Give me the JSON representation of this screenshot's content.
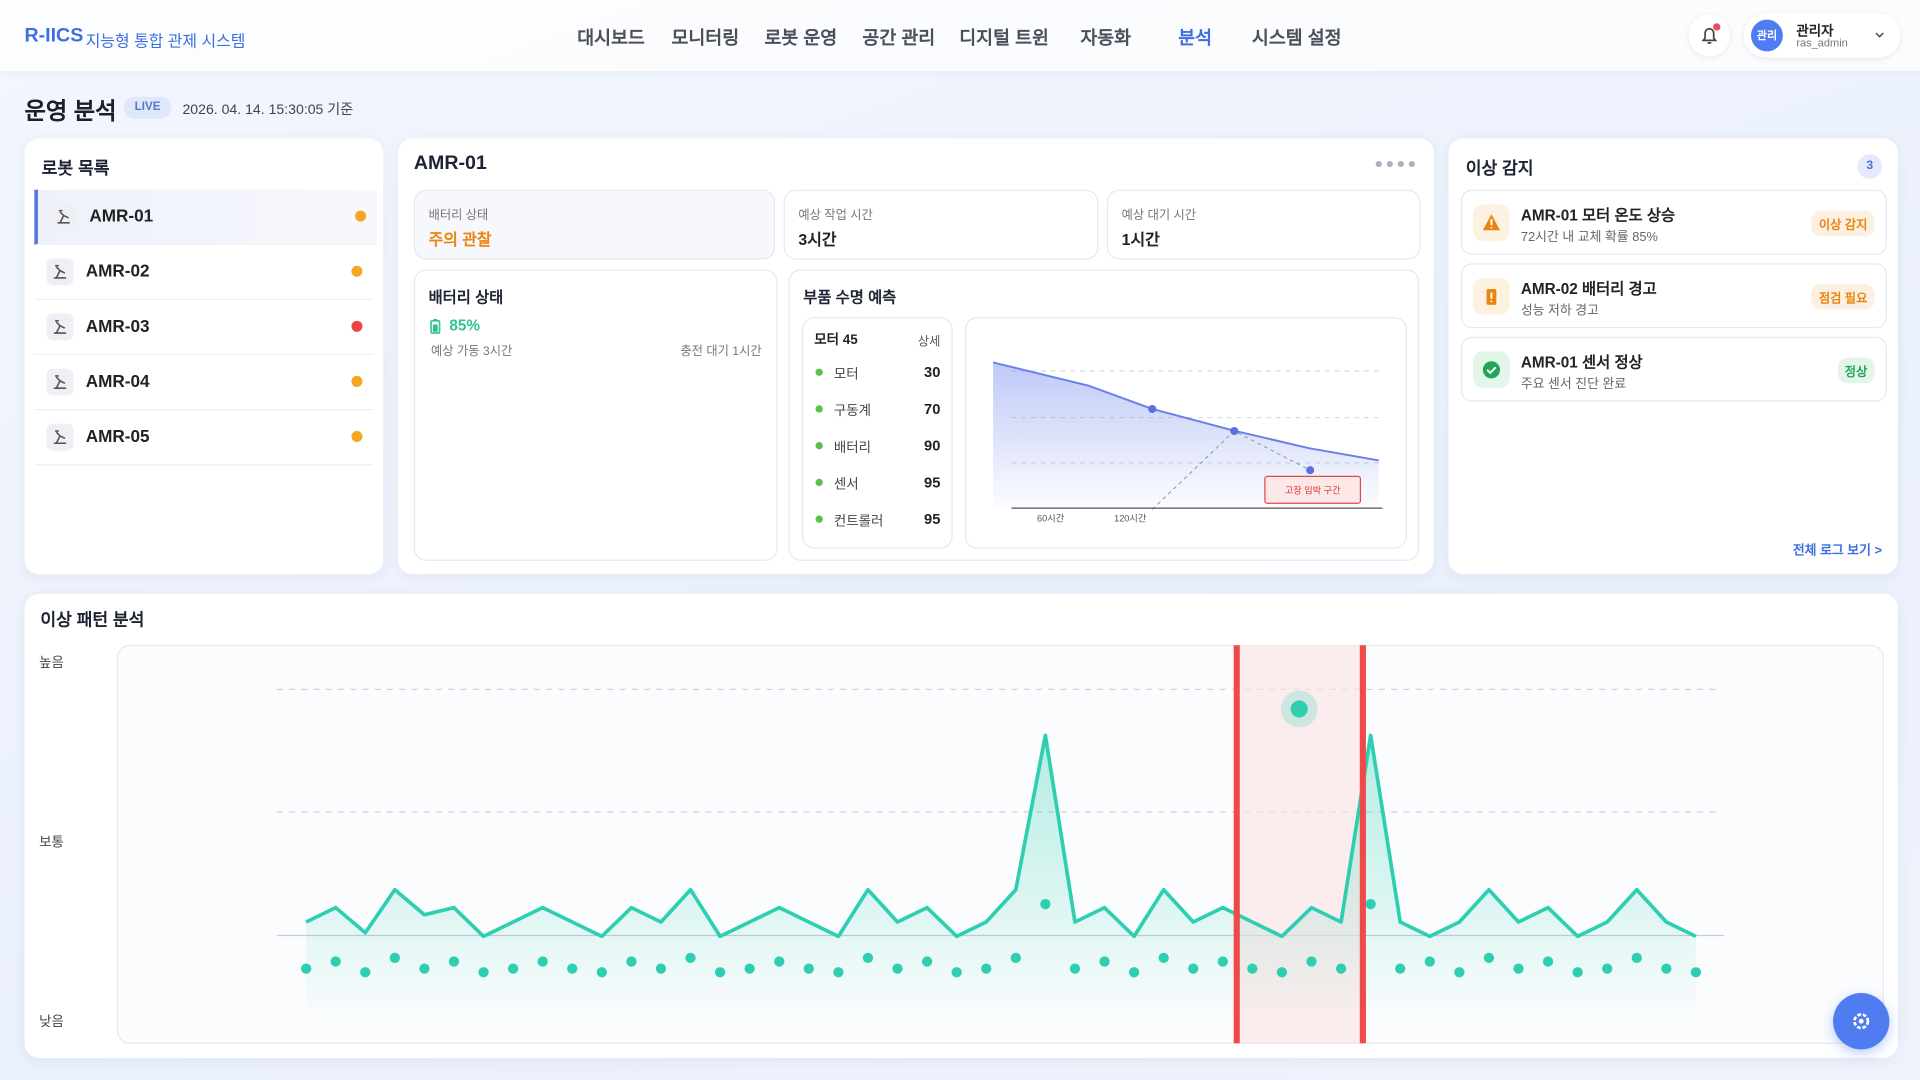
{
  "header": {
    "logo": "R-IICS",
    "subtitle": "지능형 통합 관제 시스템",
    "nav": [
      "대시보드",
      "모니터링",
      "로봇 운영",
      "공간 관리",
      "디지털 트윈",
      "자동화",
      "분석",
      "시스템 설정"
    ],
    "active_nav": 6,
    "user": {
      "avatar": "관리",
      "name": "관리자",
      "id": "ras_admin"
    }
  },
  "page": {
    "title": "운영 분석",
    "badge": "LIVE",
    "timestamp": "2026. 04. 14. 15:30:05 기준"
  },
  "robot_list": {
    "title": "로봇 목록",
    "items": [
      {
        "name": "AMR-01",
        "status_color": "#f5a623"
      },
      {
        "name": "AMR-02",
        "status_color": "#f5a623"
      },
      {
        "name": "AMR-03",
        "status_color": "#ef4444"
      },
      {
        "name": "AMR-04",
        "status_color": "#f5a623"
      },
      {
        "name": "AMR-05",
        "status_color": "#f5a623"
      }
    ]
  },
  "detail": {
    "title": "AMR-01",
    "stats": [
      {
        "label": "배터리 상태",
        "value": "주의 관찰",
        "color": "#e8870e"
      },
      {
        "label": "예상 작업 시간",
        "value": "3시간",
        "color": "#222222"
      },
      {
        "label": "예상 대기 시간",
        "value": "1시간",
        "color": "#222222"
      }
    ],
    "battery": {
      "title": "배터리 상태",
      "level": "85%",
      "runtime": "예상 가동 3시간",
      "charge": "충전 대기 1시간"
    },
    "parts": {
      "title": "부품 수명 예측",
      "table_title": "모터 45",
      "table_link": "상세",
      "rows": [
        [
          "모터",
          "30"
        ],
        [
          "구동계",
          "70"
        ],
        [
          "배터리",
          "90"
        ],
        [
          "센서",
          "95"
        ],
        [
          "컨트롤러",
          "95"
        ]
      ],
      "chart": {
        "x_labels": [
          "60시간",
          "120시간"
        ],
        "zone_label": "고장 임박 구간"
      }
    }
  },
  "alerts": {
    "title": "이상 감지",
    "count": "3",
    "link": "전체 로그 보기 >",
    "items": [
      {
        "title": "AMR-01 모터 온도 상승",
        "desc": "72시간 내 교체 확률 85%",
        "tag": "이상 감지",
        "color": "#e8870e"
      },
      {
        "title": "AMR-02 배터리 경고",
        "desc": "성능 저하 경고",
        "tag": "점검 필요",
        "color": "#e8870e"
      },
      {
        "title": "AMR-01 센서 정상",
        "desc": "주요 센서 진단 완료",
        "tag": "정상",
        "color": "#22a559"
      }
    ]
  },
  "chart_data": {
    "type": "line",
    "title": "이상 패턴 분석",
    "ylim": [
      0,
      100
    ],
    "yticks": [
      {
        "value": 100,
        "label": "높음"
      },
      {
        "value": 50,
        "label": "보통"
      },
      {
        "value": 0,
        "label": "낮음"
      }
    ],
    "series": [
      {
        "color": "#2ecfb0",
        "values": [
          28,
          32,
          25,
          37,
          30,
          32,
          24,
          28,
          32,
          28,
          24,
          32,
          28,
          37,
          24,
          28,
          32,
          28,
          24,
          37,
          28,
          32,
          24,
          28,
          37,
          80,
          28,
          32,
          24,
          37,
          28,
          32,
          28,
          24,
          32,
          28,
          80,
          28,
          24,
          28,
          37,
          28,
          32,
          24,
          28,
          37,
          28,
          24
        ]
      },
      {
        "color": "#2ecfb0",
        "marker": "dot",
        "values": [
          15,
          17,
          14,
          18,
          15,
          17,
          14,
          15,
          17,
          15,
          14,
          17,
          15,
          18,
          14,
          15,
          17,
          15,
          14,
          18,
          15,
          17,
          14,
          15,
          18,
          33,
          15,
          17,
          14,
          18,
          15,
          17,
          15,
          14,
          17,
          15,
          33,
          15,
          17,
          14,
          18,
          15,
          17,
          14,
          15,
          18,
          15,
          14
        ]
      }
    ]
  }
}
